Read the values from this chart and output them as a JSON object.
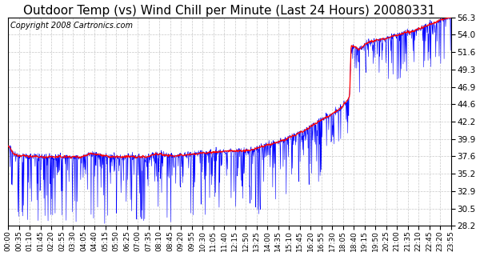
{
  "title": "Outdoor Temp (vs) Wind Chill per Minute (Last 24 Hours) 20080331",
  "copyright": "Copyright 2008 Cartronics.com",
  "background_color": "#ffffff",
  "plot_background": "#ffffff",
  "grid_color": "#c8c8c8",
  "ylim": [
    28.2,
    56.3
  ],
  "yticks": [
    28.2,
    30.5,
    32.9,
    35.2,
    37.6,
    39.9,
    42.2,
    44.6,
    46.9,
    49.3,
    51.6,
    54.0,
    56.3
  ],
  "line1_color": "#0000ff",
  "line2_color": "#ff0000",
  "title_fontsize": 11,
  "copyright_fontsize": 7,
  "xtick_labels": [
    "00:00",
    "00:35",
    "01:10",
    "01:45",
    "02:20",
    "02:55",
    "03:30",
    "04:05",
    "04:40",
    "05:15",
    "05:50",
    "06:25",
    "07:00",
    "07:35",
    "08:10",
    "08:45",
    "09:20",
    "09:55",
    "10:30",
    "11:05",
    "11:40",
    "12:15",
    "12:50",
    "13:25",
    "14:00",
    "14:35",
    "15:10",
    "15:45",
    "16:20",
    "16:55",
    "17:30",
    "18:05",
    "18:40",
    "19:15",
    "19:50",
    "20:25",
    "21:00",
    "21:35",
    "22:10",
    "22:45",
    "23:20",
    "23:55"
  ]
}
